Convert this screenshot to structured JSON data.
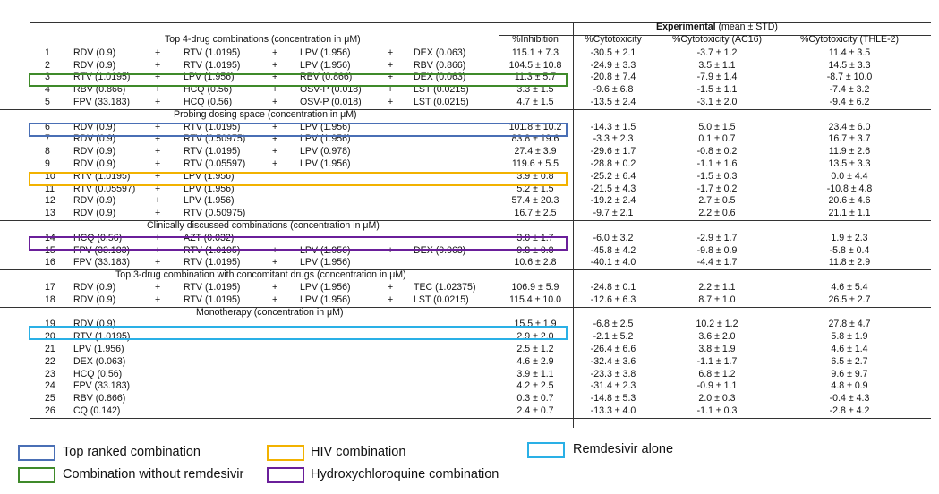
{
  "header": {
    "experimental_bold": "Experimental",
    "experimental_rest": " (mean ± STD)",
    "col_inhibition": "%Inhibition",
    "col_cytotoxicity": "%Cytotoxicity",
    "col_cyto_ac16": "%Cytotoxicity (AC16)",
    "col_cyto_thle": "%Cytotoxicity (THLE-2)"
  },
  "sections": {
    "s1": "Top 4-drug combinations (concentration in μM)",
    "s2": "Probing dosing space (concentration in μM)",
    "s3": "Clinically discussed combinations (concentration in μM)",
    "s4": "Top 3-drug combination with concomitant drugs (concentration in μM)",
    "s5": "Monotherapy (concentration in μM)"
  },
  "rows": [
    {
      "n": "1",
      "d": [
        "RDV (0.9)",
        "RTV (1.0195)",
        "LPV (1.956)",
        "DEX (0.063)"
      ],
      "inh": "115.1 ± 7.3",
      "cyt": "-30.5 ± 2.1",
      "ac16": "-3.7 ± 1.2",
      "thle": "11.4 ± 3.5"
    },
    {
      "n": "2",
      "d": [
        "RDV (0.9)",
        "RTV (1.0195)",
        "LPV (1.956)",
        "RBV (0.866)"
      ],
      "inh": "104.5 ± 10.8",
      "cyt": "-24.9 ± 3.3",
      "ac16": "3.5 ± 1.1",
      "thle": "14.5 ± 3.3"
    },
    {
      "n": "3",
      "d": [
        "RTV (1.0195)",
        "LPV (1.956)",
        "RBV (0.866)",
        "DEX (0.063)"
      ],
      "inh": "11.3 ± 5.7",
      "cyt": "-20.8 ± 7.4",
      "ac16": "-7.9 ± 1.4",
      "thle": "-8.7 ± 10.0"
    },
    {
      "n": "4",
      "d": [
        "RBV (0.866)",
        "HCQ (0.56)",
        "OSV-P (0.018)",
        "LST (0.0215)"
      ],
      "inh": "3.3 ± 1.5",
      "cyt": "-9.6 ± 6.8",
      "ac16": "-1.5 ± 1.1",
      "thle": "-7.4 ± 3.2"
    },
    {
      "n": "5",
      "d": [
        "FPV (33.183)",
        "HCQ (0.56)",
        "OSV-P (0.018)",
        "LST (0.0215)"
      ],
      "inh": "4.7 ± 1.5",
      "cyt": "-13.5 ± 2.4",
      "ac16": "-3.1 ± 2.0",
      "thle": "-9.4 ± 6.2"
    },
    {
      "n": "6",
      "d": [
        "RDV (0.9)",
        "RTV (1.0195)",
        "LPV (1.956)",
        ""
      ],
      "inh": "101.8 ± 10.2",
      "cyt": "-14.3 ± 1.5",
      "ac16": "5.0 ± 1.5",
      "thle": "23.4 ± 6.0"
    },
    {
      "n": "7",
      "d": [
        "RDV (0.9)",
        "RTV (0.50975)",
        "LPV (1.956)",
        ""
      ],
      "inh": "83.8 ± 19.6",
      "cyt": "-3.3 ± 2.3",
      "ac16": "0.1 ± 0.7",
      "thle": "16.7 ± 3.7"
    },
    {
      "n": "8",
      "d": [
        "RDV (0.9)",
        "RTV (1.0195)",
        "LPV (0.978)",
        ""
      ],
      "inh": "27.4 ± 3.9",
      "cyt": "-29.6 ± 1.7",
      "ac16": "-0.8 ± 0.2",
      "thle": "11.9 ± 2.6"
    },
    {
      "n": "9",
      "d": [
        "RDV (0.9)",
        "RTV (0.05597)",
        "LPV (1.956)",
        ""
      ],
      "inh": "119.6 ± 5.5",
      "cyt": "-28.8 ± 0.2",
      "ac16": "-1.1 ± 1.6",
      "thle": "13.5 ± 3.3"
    },
    {
      "n": "10",
      "d": [
        "RTV (1.0195)",
        "LPV (1.956)",
        "",
        ""
      ],
      "inh": "3.9 ± 0.8",
      "cyt": "-25.2 ± 6.4",
      "ac16": "-1.5 ± 0.3",
      "thle": "0.0 ± 4.4"
    },
    {
      "n": "11",
      "d": [
        "RTV (0.05597)",
        "LPV (1.956)",
        "",
        ""
      ],
      "inh": "5.2 ± 1.5",
      "cyt": "-21.5 ± 4.3",
      "ac16": "-1.7 ± 0.2",
      "thle": "-10.8 ± 4.8"
    },
    {
      "n": "12",
      "d": [
        "RDV (0.9)",
        "LPV (1.956)",
        "",
        ""
      ],
      "inh": "57.4 ± 20.3",
      "cyt": "-19.2 ± 2.4",
      "ac16": "2.7 ± 0.5",
      "thle": "20.6 ± 4.6"
    },
    {
      "n": "13",
      "d": [
        "RDV (0.9)",
        "RTV (0.50975)",
        "",
        ""
      ],
      "inh": "16.7 ± 2.5",
      "cyt": "-9.7 ± 2.1",
      "ac16": "2.2 ± 0.6",
      "thle": "21.1 ± 1.1"
    },
    {
      "n": "14",
      "d": [
        "HCQ (0.56)",
        "AZT (0.032)",
        "",
        ""
      ],
      "inh": "3.0 ± 1.7",
      "cyt": "-6.0 ± 3.2",
      "ac16": "-2.9 ± 1.7",
      "thle": "1.9 ± 2.3"
    },
    {
      "n": "15",
      "d": [
        "FPV (33.183)",
        "RTV (1.0195)",
        "LPV (1.956)",
        "DEX (0.063)"
      ],
      "inh": "9.8 ± 0.8",
      "cyt": "-45.8 ± 4.2",
      "ac16": "-9.8 ± 0.9",
      "thle": "-5.8 ± 0.4"
    },
    {
      "n": "16",
      "d": [
        "FPV (33.183)",
        "RTV (1.0195)",
        "LPV (1.956)",
        ""
      ],
      "inh": "10.6 ± 2.8",
      "cyt": "-40.1 ± 4.0",
      "ac16": "-4.4 ± 1.7",
      "thle": "11.8 ± 2.9"
    },
    {
      "n": "17",
      "d": [
        "RDV (0.9)",
        "RTV (1.0195)",
        "LPV (1.956)",
        "TEC (1.02375)"
      ],
      "inh": "106.9 ± 5.9",
      "cyt": "-24.8 ± 0.1",
      "ac16": "2.2 ± 1.1",
      "thle": "4.6 ± 5.4"
    },
    {
      "n": "18",
      "d": [
        "RDV (0.9)",
        "RTV (1.0195)",
        "LPV (1.956)",
        "LST (0.0215)"
      ],
      "inh": "115.4 ± 10.0",
      "cyt": "-12.6 ± 6.3",
      "ac16": "8.7 ± 1.0",
      "thle": "26.5 ± 2.7"
    },
    {
      "n": "19",
      "d": [
        "RDV (0.9)",
        "",
        "",
        ""
      ],
      "inh": "15.5 ± 1.9",
      "cyt": "-6.8 ± 2.5",
      "ac16": "10.2 ± 1.2",
      "thle": "27.8 ± 4.7"
    },
    {
      "n": "20",
      "d": [
        "RTV (1.0195)",
        "",
        "",
        ""
      ],
      "inh": "2.9 ± 2.0",
      "cyt": "-2.1 ± 5.2",
      "ac16": "3.6 ± 2.0",
      "thle": "5.8 ± 1.9"
    },
    {
      "n": "21",
      "d": [
        "LPV (1.956)",
        "",
        "",
        ""
      ],
      "inh": "2.5 ± 1.2",
      "cyt": "-26.4 ± 6.6",
      "ac16": "3.8 ± 1.9",
      "thle": "4.6 ± 1.4"
    },
    {
      "n": "22",
      "d": [
        "DEX (0.063)",
        "",
        "",
        ""
      ],
      "inh": "4.6 ± 2.9",
      "cyt": "-32.4 ± 3.6",
      "ac16": "-1.1 ± 1.7",
      "thle": "6.5 ± 2.7"
    },
    {
      "n": "23",
      "d": [
        "HCQ (0.56)",
        "",
        "",
        ""
      ],
      "inh": "3.9 ± 1.1",
      "cyt": "-23.3 ± 3.8",
      "ac16": "6.8 ± 1.2",
      "thle": "9.6 ± 9.7"
    },
    {
      "n": "24",
      "d": [
        "FPV (33.183)",
        "",
        "",
        ""
      ],
      "inh": "4.2 ± 2.5",
      "cyt": "-31.4 ± 2.3",
      "ac16": "-0.9 ± 1.1",
      "thle": "4.8 ± 0.9"
    },
    {
      "n": "25",
      "d": [
        "RBV (0.866)",
        "",
        "",
        ""
      ],
      "inh": "0.3 ± 0.7",
      "cyt": "-14.8 ± 5.3",
      "ac16": "2.0 ± 0.3",
      "thle": "-0.4 ± 4.3"
    },
    {
      "n": "26",
      "d": [
        "CQ (0.142)",
        "",
        "",
        ""
      ],
      "inh": "2.4 ± 0.7",
      "cyt": "-13.3 ± 4.0",
      "ac16": "-1.1 ± 0.3",
      "thle": "-2.8 ± 4.2"
    }
  ],
  "plus": "+",
  "legend": {
    "top_ranked": {
      "label": "Top ranked combination",
      "color": "#4a6fb5"
    },
    "hiv": {
      "label": "HIV combination",
      "color": "#f2b200"
    },
    "remdesivir_alone": {
      "label": "Remdesivir alone",
      "color": "#2ab0e6"
    },
    "no_remdesivir": {
      "label": "Combination without remdesivir",
      "color": "#3f8a2a"
    },
    "hcq": {
      "label": "Hydroxychloroquine combination",
      "color": "#6a1f9a"
    }
  }
}
